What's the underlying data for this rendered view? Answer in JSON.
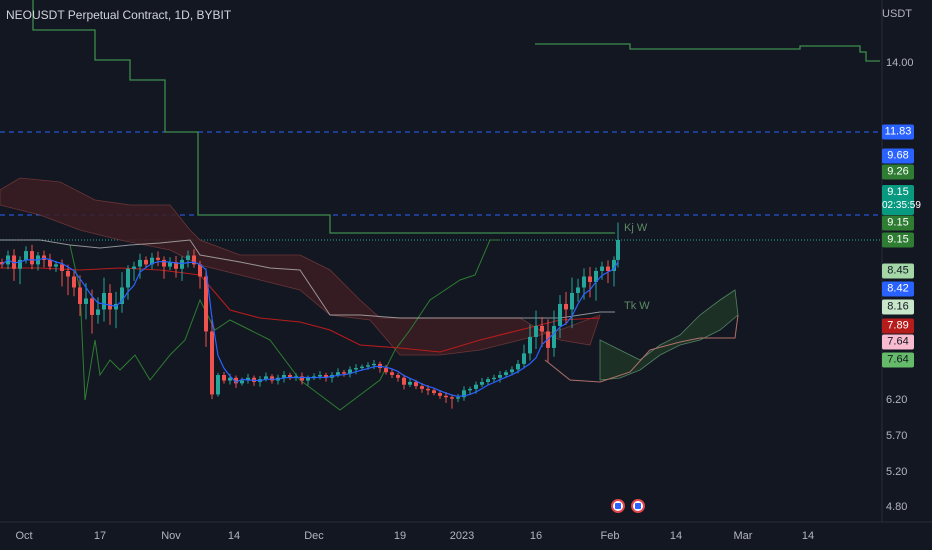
{
  "header": {
    "title": "NEOUSDT Perpetual Contract, 1D, BYBIT",
    "currency": "USDT"
  },
  "price_axis": {
    "ticks": [
      "14.00",
      "6.20",
      "5.70",
      "5.20",
      "4.80"
    ]
  },
  "badges": [
    {
      "label": "11.83",
      "price": 11.83,
      "color": "#2962ff"
    },
    {
      "label": "9.68",
      "price": 9.68,
      "color": "#2962ff"
    },
    {
      "label": "9.26",
      "price": 9.26,
      "color": "#2e7d32"
    },
    {
      "label": "9.15",
      "sub": "02:35:59",
      "price": 9.15,
      "color": "#089981"
    },
    {
      "label": "9.15",
      "price": 9.06,
      "color": "#2e7d32"
    },
    {
      "label": "9.15",
      "price": 8.95,
      "color": "#2e7d32"
    },
    {
      "label": "8.45",
      "price": 8.45,
      "color": "#a5d6a7",
      "text": "#131722"
    },
    {
      "label": "8.42",
      "price": 8.42,
      "color": "#2962ff"
    },
    {
      "label": "8.16",
      "price": 8.16,
      "color": "#c8e6c9",
      "text": "#131722"
    },
    {
      "label": "7.89",
      "price": 7.89,
      "color": "#b71c1c"
    },
    {
      "label": "7.64",
      "price": 7.7,
      "color": "#f8bbd0",
      "text": "#131722"
    },
    {
      "label": "7.64",
      "price": 7.55,
      "color": "#66bb6a",
      "text": "#131722"
    }
  ],
  "indicator_labels": {
    "kijun": "Kj W",
    "tenkan": "Tk W"
  },
  "x_axis": {
    "ticks": [
      "Oct",
      "17",
      "Nov",
      "14",
      "Dec",
      "19",
      "2023",
      "16",
      "Feb",
      "14",
      "Mar",
      "14"
    ]
  },
  "chart_data": {
    "type": "candlestick",
    "title": "NEOUSDT Perpetual Contract, 1D, BYBIT",
    "y_unit": "USDT",
    "last_price": 9.15,
    "countdown": "02:35:59",
    "ohlc_summary": {
      "approx_start_close": 8.6,
      "approx_low": 6.05,
      "approx_last": 9.15
    },
    "horizontal_lines": [
      11.83,
      9.68,
      9.15
    ],
    "series": [
      {
        "name": "Kj W",
        "color": "#388e3c"
      },
      {
        "name": "Tk W",
        "color": "#4caf50"
      }
    ],
    "colors": {
      "up": "#26a69a",
      "down": "#ef5350",
      "cloud_bear": "#4a2a2a",
      "cloud_bull": "#1f3a2a",
      "ma_blue": "#2962ff",
      "ma_red": "#b71c1c"
    }
  }
}
